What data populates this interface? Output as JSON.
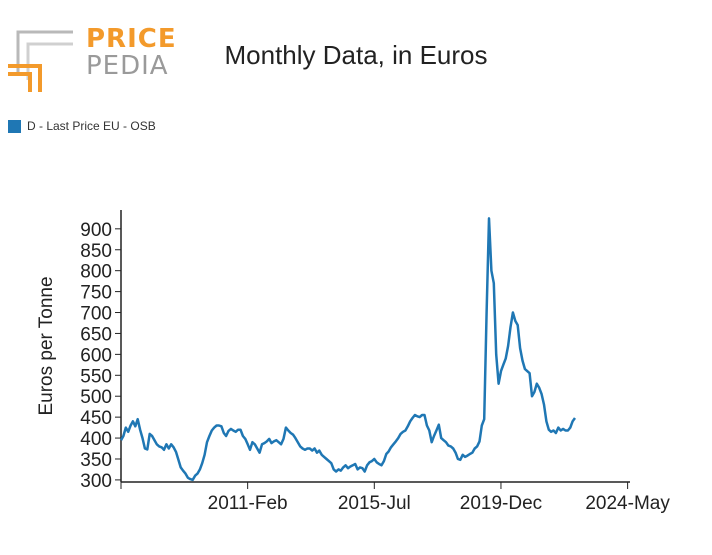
{
  "logo": {
    "line1": "PRICE",
    "line2": "PEDIA"
  },
  "chart_data": {
    "type": "line",
    "title": "Monthly Data, in Euros",
    "ylabel": "Euros per Tonne",
    "xlabel": "",
    "ylim": [
      295,
      945
    ],
    "yticks": [
      300,
      350,
      400,
      450,
      500,
      550,
      600,
      650,
      700,
      750,
      800,
      850,
      900
    ],
    "x_ticks": [
      {
        "label": "",
        "x": "2006-Sep"
      },
      {
        "label": "2011-Feb",
        "x": "2011-Feb"
      },
      {
        "label": "2015-Jul",
        "x": "2015-Jul"
      },
      {
        "label": "2019-Dec",
        "x": "2019-Dec"
      },
      {
        "label": "2024-May",
        "x": "2024-May"
      }
    ],
    "x_start": "2006-Sep",
    "x_end": "2024-Jun",
    "legend": {
      "position": "top-left"
    },
    "series": [
      {
        "name": "D - Last Price EU - OSB",
        "color": "#1f77b4",
        "values": [
          395,
          405,
          425,
          415,
          430,
          440,
          428,
          445,
          420,
          400,
          375,
          373,
          410,
          405,
          395,
          385,
          380,
          378,
          372,
          385,
          375,
          385,
          378,
          367,
          348,
          330,
          322,
          315,
          305,
          302,
          300,
          310,
          315,
          325,
          340,
          360,
          390,
          405,
          418,
          425,
          430,
          430,
          428,
          412,
          405,
          417,
          422,
          418,
          415,
          420,
          420,
          405,
          398,
          385,
          372,
          390,
          385,
          375,
          365,
          385,
          388,
          392,
          398,
          388,
          392,
          395,
          390,
          385,
          398,
          425,
          418,
          412,
          408,
          400,
          390,
          380,
          375,
          372,
          375,
          375,
          370,
          375,
          365,
          370,
          360,
          355,
          350,
          345,
          340,
          325,
          320,
          325,
          322,
          330,
          335,
          328,
          332,
          335,
          338,
          325,
          330,
          328,
          320,
          335,
          342,
          345,
          350,
          342,
          338,
          335,
          345,
          362,
          368,
          378,
          385,
          392,
          400,
          410,
          415,
          418,
          428,
          440,
          448,
          455,
          452,
          450,
          455,
          455,
          430,
          418,
          390,
          405,
          418,
          432,
          400,
          395,
          390,
          382,
          380,
          375,
          365,
          350,
          348,
          360,
          355,
          358,
          362,
          365,
          375,
          380,
          392,
          430,
          445,
          700,
          925,
          800,
          770,
          600,
          530,
          560,
          575,
          590,
          620,
          665,
          700,
          680,
          670,
          615,
          585,
          565,
          560,
          555,
          500,
          510,
          530,
          520,
          505,
          480,
          440,
          420,
          415,
          418,
          412,
          425,
          418,
          422,
          418,
          418,
          425,
          440,
          448
        ]
      }
    ]
  }
}
